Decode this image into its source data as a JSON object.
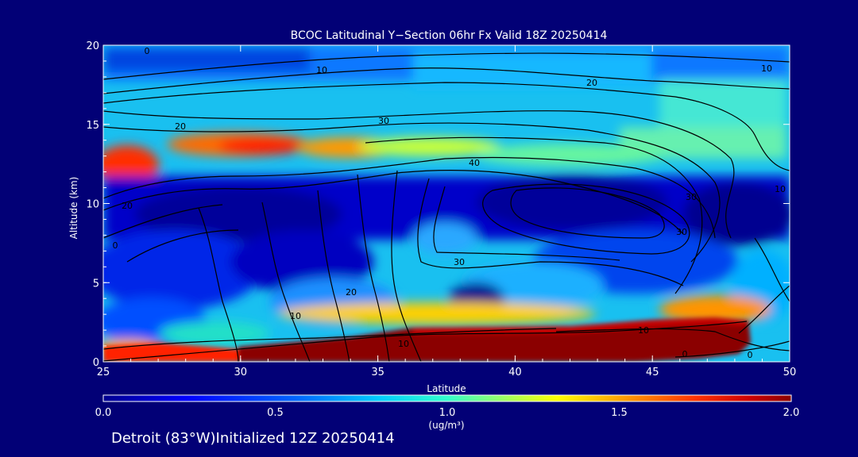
{
  "chart_data": {
    "type": "heatmap",
    "title": "BCOC Latitudinal Y−Section 06hr  Fx Valid 18Z 20250414",
    "xlabel": "Latitude",
    "ylabel": "Altitude (km)",
    "xlim": [
      25,
      50
    ],
    "ylim": [
      0,
      20
    ],
    "x_ticks": [
      "25",
      "30",
      "35",
      "40",
      "45",
      "50"
    ],
    "y_ticks": [
      "0",
      "5",
      "10",
      "15",
      "20"
    ],
    "colorbar": {
      "range": [
        0.0,
        2.0
      ],
      "ticks": [
        "0.0",
        "0.5",
        "1.0",
        "1.5",
        "2.0"
      ],
      "unit": "(ug/m³)",
      "colormap": [
        "#00008f",
        "#0000ff",
        "#0066ff",
        "#00ccff",
        "#33ffcc",
        "#99ff66",
        "#ffff00",
        "#ff9900",
        "#ff3300",
        "#cc0000",
        "#8b0000"
      ]
    },
    "field_features": [
      {
        "feature": "plume",
        "lat": [
          25,
          27
        ],
        "alt": [
          11.5,
          13.5
        ],
        "value": 1.7
      },
      {
        "feature": "plume",
        "lat": [
          29,
          35
        ],
        "alt": [
          13,
          14.5
        ],
        "value": 1.8
      },
      {
        "feature": "plume",
        "lat": [
          35,
          40
        ],
        "alt": [
          13,
          14
        ],
        "value": 1.3
      },
      {
        "feature": "surface layer",
        "lat": [
          30,
          49
        ],
        "alt": [
          0,
          2.5
        ],
        "value": 2.0
      },
      {
        "feature": "low layer",
        "lat": [
          25,
          30
        ],
        "alt": [
          0.4,
          1.2
        ],
        "value": 1.5
      },
      {
        "feature": "mid minimum",
        "lat": [
          25,
          50
        ],
        "alt": [
          7,
          12
        ],
        "value": 0.1
      }
    ],
    "contour_labels": [
      "0",
      "10",
      "10",
      "20",
      "30",
      "40",
      "20",
      "30",
      "10",
      "20",
      "30",
      "0",
      "10",
      "20",
      "30",
      "10",
      "0",
      "0",
      "10"
    ]
  },
  "footer": "Detroit (83°W)Initialized 12Z 20250414"
}
